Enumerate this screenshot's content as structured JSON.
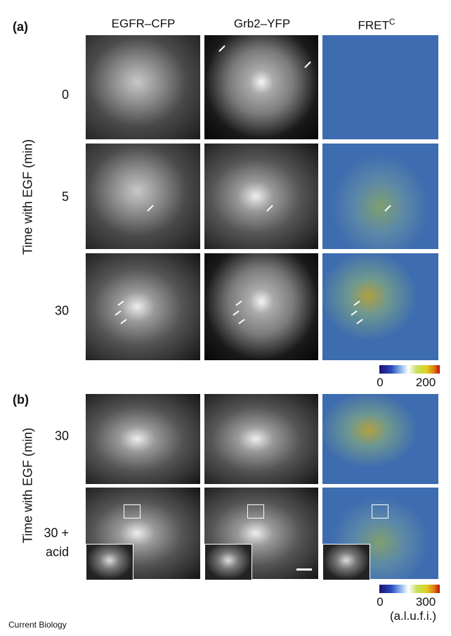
{
  "panel_a": {
    "label": "(a)",
    "columns": [
      {
        "text": "EGFR–CFP"
      },
      {
        "text": "Grb2–YFP"
      },
      {
        "text": "FRET",
        "superscript": "C"
      }
    ],
    "rows": [
      "0",
      "5",
      "30"
    ],
    "y_axis_label": "Time with EGF (min)",
    "colorbar": {
      "min": 0,
      "max": 200
    }
  },
  "panel_b": {
    "label": "(b)",
    "rows": [
      [
        "30"
      ],
      [
        "30 +",
        "acid"
      ]
    ],
    "y_axis_label": "Time with EGF (min)",
    "colorbar": {
      "min": 0,
      "max": 300,
      "unit": "(a.l.u.f.i.)"
    }
  },
  "footer": "Current Biology"
}
